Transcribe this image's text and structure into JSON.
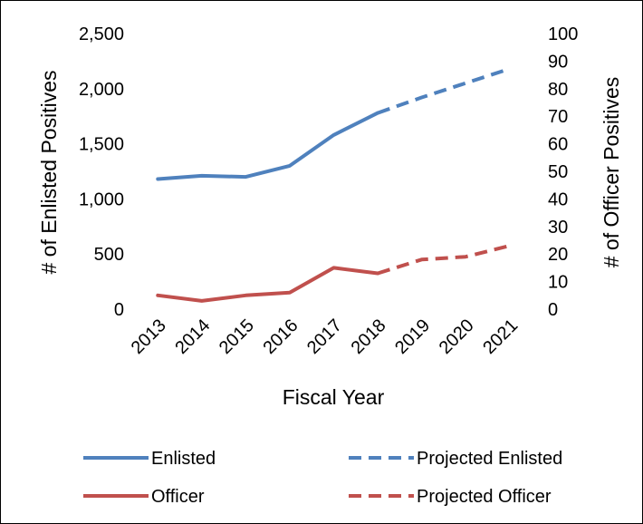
{
  "chart_data": {
    "type": "line",
    "xlabel": "Fiscal Year",
    "ylabel_left": "# of Enlisted Positives",
    "ylabel_right": "# of Officer Positives",
    "categories": [
      "2013",
      "2014",
      "2015",
      "2016",
      "2017",
      "2018",
      "2019",
      "2020",
      "2021"
    ],
    "y_left": {
      "min": 0,
      "max": 2500,
      "step": 500,
      "tick_labels": [
        "0",
        "500",
        "1,000",
        "1,500",
        "2,000",
        "2,500"
      ]
    },
    "y_right": {
      "min": 0,
      "max": 100,
      "step": 10,
      "tick_labels": [
        "0",
        "10",
        "20",
        "30",
        "40",
        "50",
        "60",
        "70",
        "80",
        "90",
        "100"
      ]
    },
    "grid": false,
    "legend_position": "bottom",
    "series": [
      {
        "name": "Enlisted",
        "axis": "left",
        "style": "solid",
        "color": "#4f81bd",
        "x": [
          "2013",
          "2014",
          "2015",
          "2016",
          "2017",
          "2018"
        ],
        "values": [
          1180,
          1210,
          1200,
          1300,
          1580,
          1780
        ]
      },
      {
        "name": "Projected Enlisted",
        "axis": "left",
        "style": "dashed",
        "color": "#4f81bd",
        "x": [
          "2018",
          "2019",
          "2020",
          "2021"
        ],
        "values": [
          1780,
          1920,
          2050,
          2180
        ]
      },
      {
        "name": "Officer",
        "axis": "right",
        "style": "solid",
        "color": "#c0504d",
        "x": [
          "2013",
          "2014",
          "2015",
          "2016",
          "2017",
          "2018"
        ],
        "values": [
          5,
          3,
          5,
          6,
          15,
          13
        ]
      },
      {
        "name": "Projected Officer",
        "axis": "right",
        "style": "dashed",
        "color": "#c0504d",
        "x": [
          "2018",
          "2019",
          "2020",
          "2021"
        ],
        "values": [
          13,
          18,
          19,
          23
        ]
      }
    ]
  }
}
